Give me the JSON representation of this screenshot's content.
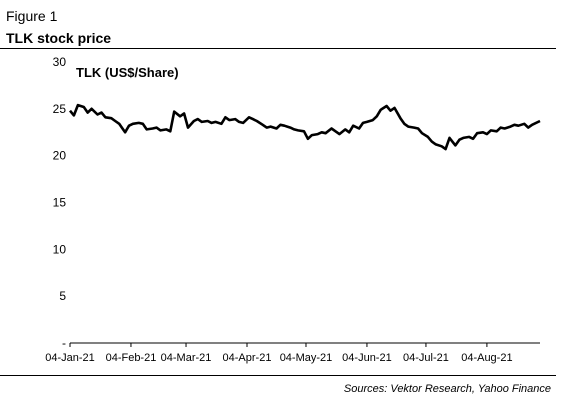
{
  "figure_label": "Figure 1",
  "figure_title": "TLK stock price",
  "source": "Sources: Vektor Research, Yahoo Finance",
  "chart_data": {
    "type": "line",
    "title": "",
    "xlabel": "",
    "ylabel": "",
    "ylim": [
      0,
      30
    ],
    "yticks": [
      0,
      5,
      10,
      15,
      20,
      25,
      30
    ],
    "ytick_labels": [
      "-",
      "5",
      "10",
      "15",
      "20",
      "25",
      "30"
    ],
    "xlim": [
      "2021-01-04",
      "2021-08-31"
    ],
    "xticks": [
      "2021-01-04",
      "2021-02-04",
      "2021-03-04",
      "2021-04-04",
      "2021-05-04",
      "2021-06-04",
      "2021-07-04",
      "2021-08-04"
    ],
    "xtick_labels": [
      "04-Jan-21",
      "04-Feb-21",
      "04-Mar-21",
      "04-Apr-21",
      "04-May-21",
      "04-Jun-21",
      "04-Jul-21",
      "04-Aug-21"
    ],
    "grid": false,
    "legend": "none",
    "line_color": "#000000",
    "series": [
      {
        "name": "TLK (US$/Share)",
        "x": [
          "2021-01-04",
          "2021-01-06",
          "2021-01-08",
          "2021-01-11",
          "2021-01-13",
          "2021-01-15",
          "2021-01-18",
          "2021-01-20",
          "2021-01-22",
          "2021-01-25",
          "2021-01-27",
          "2021-01-29",
          "2021-02-01",
          "2021-02-03",
          "2021-02-05",
          "2021-02-08",
          "2021-02-10",
          "2021-02-12",
          "2021-02-15",
          "2021-02-17",
          "2021-02-19",
          "2021-02-22",
          "2021-02-24",
          "2021-02-26",
          "2021-03-01",
          "2021-03-03",
          "2021-03-05",
          "2021-03-08",
          "2021-03-10",
          "2021-03-12",
          "2021-03-15",
          "2021-03-17",
          "2021-03-19",
          "2021-03-22",
          "2021-03-24",
          "2021-03-26",
          "2021-03-29",
          "2021-03-31",
          "2021-04-02",
          "2021-04-05",
          "2021-04-07",
          "2021-04-09",
          "2021-04-12",
          "2021-04-14",
          "2021-04-16",
          "2021-04-19",
          "2021-04-21",
          "2021-04-23",
          "2021-04-26",
          "2021-04-28",
          "2021-04-30",
          "2021-05-03",
          "2021-05-05",
          "2021-05-07",
          "2021-05-10",
          "2021-05-12",
          "2021-05-14",
          "2021-05-17",
          "2021-05-19",
          "2021-05-21",
          "2021-05-24",
          "2021-05-26",
          "2021-05-28",
          "2021-05-31",
          "2021-06-02",
          "2021-06-04",
          "2021-06-07",
          "2021-06-09",
          "2021-06-11",
          "2021-06-14",
          "2021-06-16",
          "2021-06-18",
          "2021-06-21",
          "2021-06-23",
          "2021-06-25",
          "2021-06-28",
          "2021-06-30",
          "2021-07-02",
          "2021-07-05",
          "2021-07-07",
          "2021-07-09",
          "2021-07-12",
          "2021-07-14",
          "2021-07-16",
          "2021-07-19",
          "2021-07-21",
          "2021-07-23",
          "2021-07-26",
          "2021-07-28",
          "2021-07-30",
          "2021-08-02",
          "2021-08-04",
          "2021-08-06",
          "2021-08-09",
          "2021-08-11",
          "2021-08-13",
          "2021-08-16",
          "2021-08-18",
          "2021-08-20",
          "2021-08-23",
          "2021-08-25",
          "2021-08-27",
          "2021-08-31"
        ],
        "values": [
          24.8,
          24.3,
          25.4,
          25.2,
          24.6,
          25.0,
          24.4,
          24.6,
          24.1,
          24.0,
          23.7,
          23.4,
          22.5,
          23.2,
          23.4,
          23.5,
          23.4,
          22.8,
          22.9,
          23.0,
          22.7,
          22.8,
          22.6,
          24.7,
          24.2,
          24.5,
          23.0,
          23.7,
          23.9,
          23.6,
          23.7,
          23.5,
          23.6,
          23.4,
          24.1,
          23.8,
          23.9,
          23.6,
          23.5,
          24.1,
          23.9,
          23.7,
          23.3,
          23.0,
          23.1,
          22.9,
          23.3,
          23.2,
          23.0,
          22.8,
          22.7,
          22.6,
          21.8,
          22.2,
          22.3,
          22.5,
          22.4,
          22.9,
          22.6,
          22.3,
          22.8,
          22.5,
          23.2,
          22.9,
          23.5,
          23.6,
          23.8,
          24.2,
          24.9,
          25.3,
          24.8,
          25.1,
          24.0,
          23.4,
          23.1,
          23.0,
          22.9,
          22.4,
          22.0,
          21.5,
          21.2,
          21.0,
          20.7,
          21.9,
          21.1,
          21.7,
          21.9,
          22.0,
          21.8,
          22.4,
          22.5,
          22.3,
          22.7,
          22.6,
          23.0,
          22.9,
          23.1,
          23.3,
          23.2,
          23.4,
          23.0,
          23.3,
          23.7
        ]
      }
    ]
  }
}
